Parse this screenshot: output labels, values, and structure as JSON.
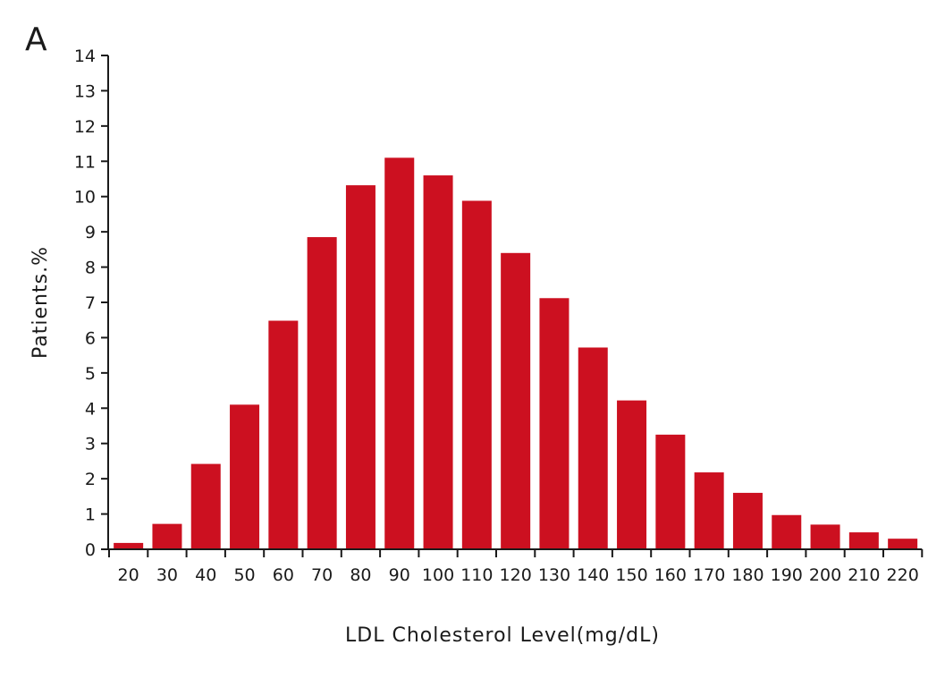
{
  "panel_label": "A",
  "colors": {
    "bar": "#cc1020",
    "axis": "#1a1a1a",
    "text": "#1a1a1a"
  },
  "chart_data": {
    "type": "bar",
    "title": "",
    "xlabel": "LDL Cholesterol Level(mg/dL)",
    "ylabel": "Patients.%",
    "categories": [
      "20",
      "30",
      "40",
      "50",
      "60",
      "70",
      "80",
      "90",
      "100",
      "110",
      "120",
      "130",
      "140",
      "150",
      "160",
      "170",
      "180",
      "190",
      "200",
      "210",
      "220"
    ],
    "values": [
      0.18,
      0.72,
      2.42,
      4.1,
      6.48,
      8.85,
      10.32,
      11.1,
      10.6,
      9.88,
      8.4,
      7.12,
      5.72,
      4.22,
      3.25,
      2.18,
      1.6,
      0.97,
      0.7,
      0.48,
      0.3
    ],
    "ylim": [
      0,
      14
    ],
    "yticks": [
      0,
      1,
      2,
      3,
      4,
      5,
      6,
      7,
      8,
      9,
      10,
      11,
      12,
      13,
      14
    ],
    "grid": false,
    "legend": "none"
  }
}
